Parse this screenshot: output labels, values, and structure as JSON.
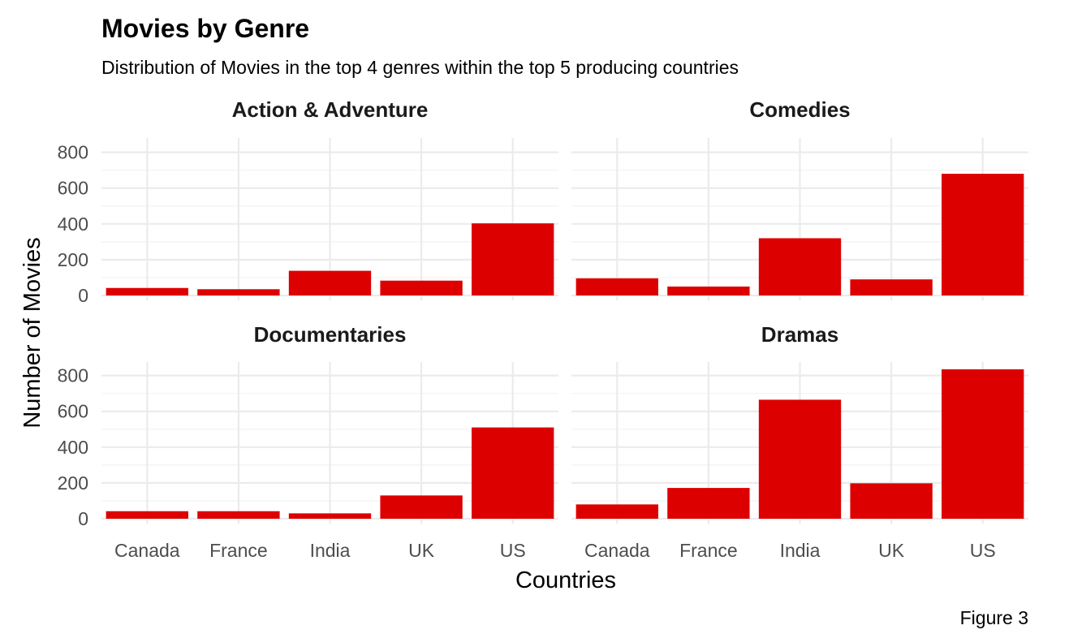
{
  "chart_data": {
    "type": "bar",
    "title": "Movies by Genre",
    "subtitle": "Distribution of Movies in the top 4 genres within the top 5 producing countries",
    "xlabel": "Countries",
    "ylabel": "Number of Movies",
    "caption": "Figure 3",
    "categories": [
      "Canada",
      "France",
      "India",
      "UK",
      "US"
    ],
    "ylim": [
      0,
      850
    ],
    "yticks": [
      0,
      200,
      400,
      600,
      800
    ],
    "bar_color": "#dd0000",
    "grid": true,
    "facets": [
      {
        "name": "Action & Adventure",
        "values": [
          42,
          35,
          138,
          83,
          403
        ]
      },
      {
        "name": "Comedies",
        "values": [
          96,
          50,
          320,
          90,
          680
        ]
      },
      {
        "name": "Documentaries",
        "values": [
          42,
          42,
          30,
          130,
          510
        ]
      },
      {
        "name": "Dramas",
        "values": [
          80,
          172,
          665,
          198,
          835
        ]
      }
    ]
  }
}
